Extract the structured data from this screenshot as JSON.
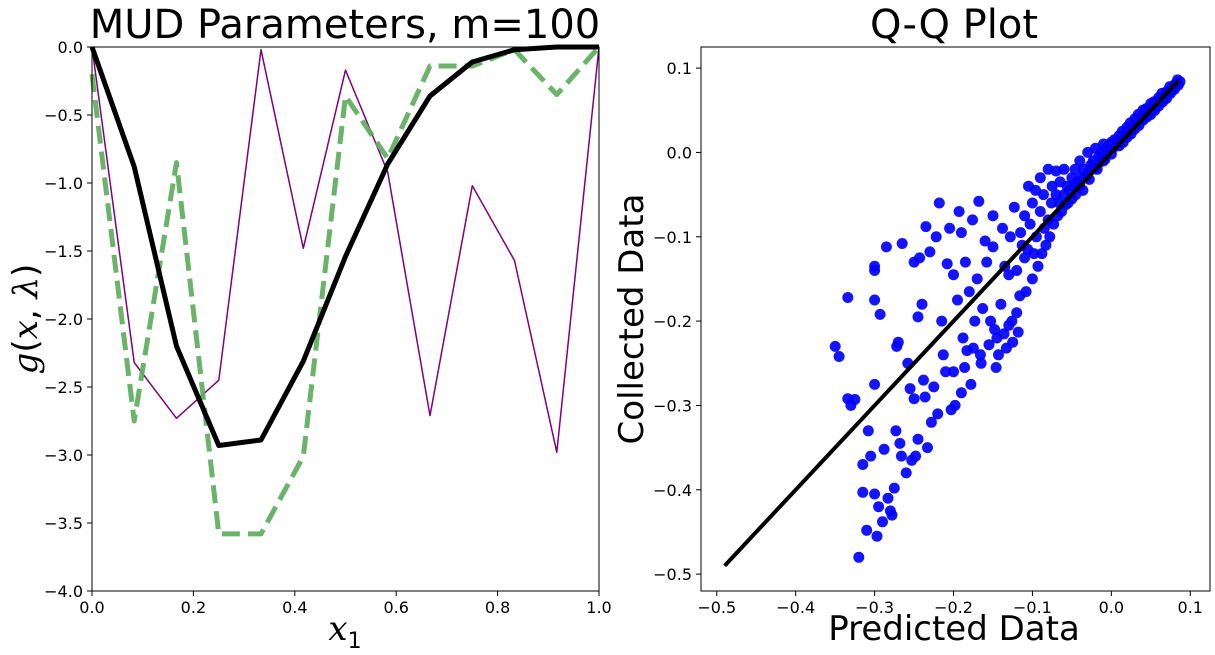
{
  "chart_data": [
    {
      "type": "line",
      "title": "MUD Parameters, m=100",
      "xlabel": "x_1",
      "ylabel": "g(x, λ)",
      "xlim": [
        0,
        1
      ],
      "ylim": [
        -4,
        0
      ],
      "xticks": [
        "0.0",
        "0.2",
        "0.4",
        "0.6",
        "0.8",
        "1.0"
      ],
      "yticks": [
        "0.0",
        "-0.5",
        "-1.0",
        "-1.5",
        "-2.0",
        "-2.5",
        "-3.0",
        "-3.5",
        "-4.0"
      ],
      "x": [
        0.0,
        0.0833,
        0.1667,
        0.25,
        0.3333,
        0.4167,
        0.5,
        0.5833,
        0.6667,
        0.75,
        0.8333,
        0.9167,
        1.0
      ],
      "series": [
        {
          "style": "thin-purple",
          "color": "#800080",
          "values": [
            0.0,
            -2.32,
            -2.73,
            -2.45,
            -0.02,
            -1.48,
            -0.17,
            -0.92,
            -2.71,
            -1.02,
            -1.57,
            -2.98,
            0.0
          ]
        },
        {
          "style": "dashed-green",
          "color": "#5aac5a",
          "values": [
            -0.2,
            -2.75,
            -0.85,
            -3.58,
            -3.58,
            -3.01,
            -0.36,
            -0.82,
            -0.14,
            -0.14,
            -0.02,
            -0.35,
            0.0
          ]
        },
        {
          "style": "thick-black",
          "color": "#000000",
          "values": [
            0.0,
            -0.88,
            -2.2,
            -2.93,
            -2.89,
            -2.31,
            -1.54,
            -0.86,
            -0.36,
            -0.11,
            -0.02,
            0.0,
            0.0
          ]
        }
      ]
    },
    {
      "type": "scatter",
      "title": "Q-Q Plot",
      "xlabel": "Predicted Data",
      "ylabel": "Collected Data",
      "xlim": [
        -0.52,
        0.125
      ],
      "ylim": [
        -0.52,
        0.125
      ],
      "xticks": [
        "-0.5",
        "-0.4",
        "-0.3",
        "-0.2",
        "-0.1",
        "0.0",
        "0.1"
      ],
      "yticks": [
        "0.1",
        "0.0",
        "-0.1",
        "-0.2",
        "-0.3",
        "-0.4",
        "-0.5"
      ],
      "point_color": "#0000ff",
      "line_color": "#000000",
      "reference_line": [
        [
          -0.49,
          -0.49
        ],
        [
          0.085,
          0.085
        ]
      ],
      "points": [
        [
          -0.35,
          -0.23
        ],
        [
          -0.345,
          -0.242
        ],
        [
          -0.334,
          -0.172
        ],
        [
          -0.334,
          -0.292
        ],
        [
          -0.33,
          -0.3
        ],
        [
          -0.325,
          -0.293
        ],
        [
          -0.32,
          -0.48
        ],
        [
          -0.315,
          -0.403
        ],
        [
          -0.315,
          -0.37
        ],
        [
          -0.31,
          -0.448
        ],
        [
          -0.308,
          -0.33
        ],
        [
          -0.305,
          -0.36
        ],
        [
          -0.3,
          -0.405
        ],
        [
          -0.3,
          -0.275
        ],
        [
          -0.3,
          -0.175
        ],
        [
          -0.3,
          -0.135
        ],
        [
          -0.3,
          -0.14
        ],
        [
          -0.297,
          -0.455
        ],
        [
          -0.295,
          -0.42
        ],
        [
          -0.293,
          -0.192
        ],
        [
          -0.29,
          -0.438
        ],
        [
          -0.288,
          -0.352
        ],
        [
          -0.285,
          -0.112
        ],
        [
          -0.283,
          -0.41
        ],
        [
          -0.28,
          -0.425
        ],
        [
          -0.278,
          -0.43
        ],
        [
          -0.275,
          -0.398
        ],
        [
          -0.273,
          -0.33
        ],
        [
          -0.272,
          -0.23
        ],
        [
          -0.27,
          -0.225
        ],
        [
          -0.268,
          -0.345
        ],
        [
          -0.266,
          -0.36
        ],
        [
          -0.265,
          -0.108
        ],
        [
          -0.26,
          -0.38
        ],
        [
          -0.258,
          -0.25
        ],
        [
          -0.255,
          -0.28
        ],
        [
          -0.253,
          -0.365
        ],
        [
          -0.25,
          -0.292
        ],
        [
          -0.25,
          -0.13
        ],
        [
          -0.248,
          -0.36
        ],
        [
          -0.245,
          -0.195
        ],
        [
          -0.245,
          -0.34
        ],
        [
          -0.243,
          -0.125
        ],
        [
          -0.24,
          -0.18
        ],
        [
          -0.238,
          -0.27
        ],
        [
          -0.236,
          -0.29
        ],
        [
          -0.235,
          -0.088
        ],
        [
          -0.233,
          -0.35
        ],
        [
          -0.23,
          -0.118
        ],
        [
          -0.228,
          -0.32
        ],
        [
          -0.225,
          -0.278
        ],
        [
          -0.222,
          -0.1
        ],
        [
          -0.22,
          -0.31
        ],
        [
          -0.218,
          -0.06
        ],
        [
          -0.215,
          -0.2
        ],
        [
          -0.213,
          -0.24
        ],
        [
          -0.21,
          -0.26
        ],
        [
          -0.208,
          -0.132
        ],
        [
          -0.205,
          -0.09
        ],
        [
          -0.203,
          -0.305
        ],
        [
          -0.2,
          -0.26
        ],
        [
          -0.2,
          -0.145
        ],
        [
          -0.198,
          -0.3
        ],
        [
          -0.195,
          -0.175
        ],
        [
          -0.193,
          -0.07
        ],
        [
          -0.19,
          -0.285
        ],
        [
          -0.19,
          -0.095
        ],
        [
          -0.188,
          -0.22
        ],
        [
          -0.186,
          -0.255
        ],
        [
          -0.185,
          -0.13
        ],
        [
          -0.183,
          -0.235
        ],
        [
          -0.18,
          -0.165
        ],
        [
          -0.178,
          -0.275
        ],
        [
          -0.176,
          -0.08
        ],
        [
          -0.175,
          -0.232
        ],
        [
          -0.173,
          -0.2
        ],
        [
          -0.17,
          -0.15
        ],
        [
          -0.168,
          -0.058
        ],
        [
          -0.166,
          -0.24
        ],
        [
          -0.165,
          -0.25
        ],
        [
          -0.163,
          -0.185
        ],
        [
          -0.16,
          -0.105
        ],
        [
          -0.158,
          -0.13
        ],
        [
          -0.155,
          -0.228
        ],
        [
          -0.153,
          -0.2
        ],
        [
          -0.15,
          -0.075
        ],
        [
          -0.15,
          -0.112
        ],
        [
          -0.148,
          -0.21
        ],
        [
          -0.146,
          -0.255
        ],
        [
          -0.145,
          -0.22
        ],
        [
          -0.143,
          -0.24
        ],
        [
          -0.14,
          -0.18
        ],
        [
          -0.138,
          -0.09
        ],
        [
          -0.136,
          -0.215
        ],
        [
          -0.135,
          -0.135
        ],
        [
          -0.133,
          -0.232
        ],
        [
          -0.13,
          -0.205
        ],
        [
          -0.13,
          -0.145
        ],
        [
          -0.128,
          -0.1
        ],
        [
          -0.126,
          -0.2
        ],
        [
          -0.125,
          -0.225
        ],
        [
          -0.123,
          -0.065
        ],
        [
          -0.12,
          -0.19
        ],
        [
          -0.12,
          -0.14
        ],
        [
          -0.118,
          -0.213
        ],
        [
          -0.116,
          -0.17
        ],
        [
          -0.115,
          -0.095
        ],
        [
          -0.113,
          -0.11
        ],
        [
          -0.11,
          -0.075
        ],
        [
          -0.11,
          -0.125
        ],
        [
          -0.108,
          -0.165
        ],
        [
          -0.106,
          -0.115
        ],
        [
          -0.105,
          -0.04
        ],
        [
          -0.103,
          -0.085
        ],
        [
          -0.1,
          -0.15
        ],
        [
          -0.1,
          -0.06
        ],
        [
          -0.098,
          -0.12
        ],
        [
          -0.096,
          -0.045
        ],
        [
          -0.095,
          -0.1
        ],
        [
          -0.093,
          -0.135
        ],
        [
          -0.09,
          -0.07
        ],
        [
          -0.09,
          -0.03
        ],
        [
          -0.088,
          -0.12
        ],
        [
          -0.086,
          -0.05
        ],
        [
          -0.085,
          -0.09
        ],
        [
          -0.083,
          -0.11
        ],
        [
          -0.08,
          -0.08
        ],
        [
          -0.08,
          -0.02
        ],
        [
          -0.078,
          -0.1
        ],
        [
          -0.076,
          -0.06
        ],
        [
          -0.075,
          -0.04
        ],
        [
          -0.073,
          -0.085
        ],
        [
          -0.07,
          -0.05
        ],
        [
          -0.07,
          -0.022
        ],
        [
          -0.068,
          -0.075
        ],
        [
          -0.066,
          -0.06
        ],
        [
          -0.065,
          -0.035
        ],
        [
          -0.063,
          -0.07
        ],
        [
          -0.06,
          -0.05
        ],
        [
          -0.06,
          -0.02
        ],
        [
          -0.058,
          -0.062
        ],
        [
          -0.056,
          -0.04
        ],
        [
          -0.055,
          -0.06
        ],
        [
          -0.053,
          -0.045
        ],
        [
          -0.05,
          -0.03
        ],
        [
          -0.05,
          -0.055
        ],
        [
          -0.048,
          -0.04
        ],
        [
          -0.046,
          -0.02
        ],
        [
          -0.045,
          -0.05
        ],
        [
          -0.043,
          -0.035
        ],
        [
          -0.04,
          -0.01
        ],
        [
          -0.04,
          -0.04
        ],
        [
          -0.038,
          -0.03
        ],
        [
          -0.036,
          -0.045
        ],
        [
          -0.035,
          -0.02
        ],
        [
          -0.033,
          -0.03
        ],
        [
          -0.03,
          0.0
        ],
        [
          -0.03,
          -0.025
        ],
        [
          -0.028,
          -0.032
        ],
        [
          -0.026,
          -0.015
        ],
        [
          -0.025,
          -0.02
        ],
        [
          -0.023,
          -0.01
        ],
        [
          -0.02,
          0.005
        ],
        [
          -0.02,
          -0.018
        ],
        [
          -0.018,
          -0.02
        ],
        [
          -0.016,
          -0.005
        ],
        [
          -0.015,
          -0.012
        ],
        [
          -0.013,
          0.0
        ],
        [
          -0.01,
          0.01
        ],
        [
          -0.01,
          -0.01
        ],
        [
          -0.008,
          -0.008
        ],
        [
          -0.006,
          0.005
        ],
        [
          -0.005,
          0.0
        ],
        [
          -0.003,
          0.008
        ],
        [
          0.0,
          0.012
        ],
        [
          0.0,
          -0.002
        ],
        [
          0.002,
          0.005
        ],
        [
          0.004,
          0.015
        ],
        [
          0.005,
          0.008
        ],
        [
          0.007,
          0.01
        ],
        [
          0.01,
          0.02
        ],
        [
          0.01,
          0.008
        ],
        [
          0.012,
          0.015
        ],
        [
          0.014,
          0.025
        ],
        [
          0.015,
          0.012
        ],
        [
          0.017,
          0.02
        ],
        [
          0.02,
          0.03
        ],
        [
          0.02,
          0.018
        ],
        [
          0.022,
          0.025
        ],
        [
          0.024,
          0.035
        ],
        [
          0.025,
          0.022
        ],
        [
          0.027,
          0.03
        ],
        [
          0.03,
          0.04
        ],
        [
          0.03,
          0.028
        ],
        [
          0.032,
          0.035
        ],
        [
          0.034,
          0.045
        ],
        [
          0.035,
          0.032
        ],
        [
          0.037,
          0.04
        ],
        [
          0.04,
          0.05
        ],
        [
          0.04,
          0.038
        ],
        [
          0.042,
          0.045
        ],
        [
          0.044,
          0.052
        ],
        [
          0.045,
          0.042
        ],
        [
          0.047,
          0.05
        ],
        [
          0.05,
          0.058
        ],
        [
          0.05,
          0.045
        ],
        [
          0.052,
          0.052
        ],
        [
          0.054,
          0.06
        ],
        [
          0.055,
          0.05
        ],
        [
          0.057,
          0.058
        ],
        [
          0.06,
          0.065
        ],
        [
          0.06,
          0.055
        ],
        [
          0.062,
          0.062
        ],
        [
          0.064,
          0.07
        ],
        [
          0.065,
          0.06
        ],
        [
          0.067,
          0.066
        ],
        [
          0.07,
          0.072
        ],
        [
          0.07,
          0.064
        ],
        [
          0.072,
          0.07
        ],
        [
          0.074,
          0.078
        ],
        [
          0.075,
          0.07
        ],
        [
          0.077,
          0.075
        ],
        [
          0.08,
          0.08
        ],
        [
          0.08,
          0.075
        ],
        [
          0.082,
          0.082
        ],
        [
          0.084,
          0.086
        ],
        [
          0.085,
          0.08
        ],
        [
          0.087,
          0.084
        ]
      ]
    }
  ]
}
